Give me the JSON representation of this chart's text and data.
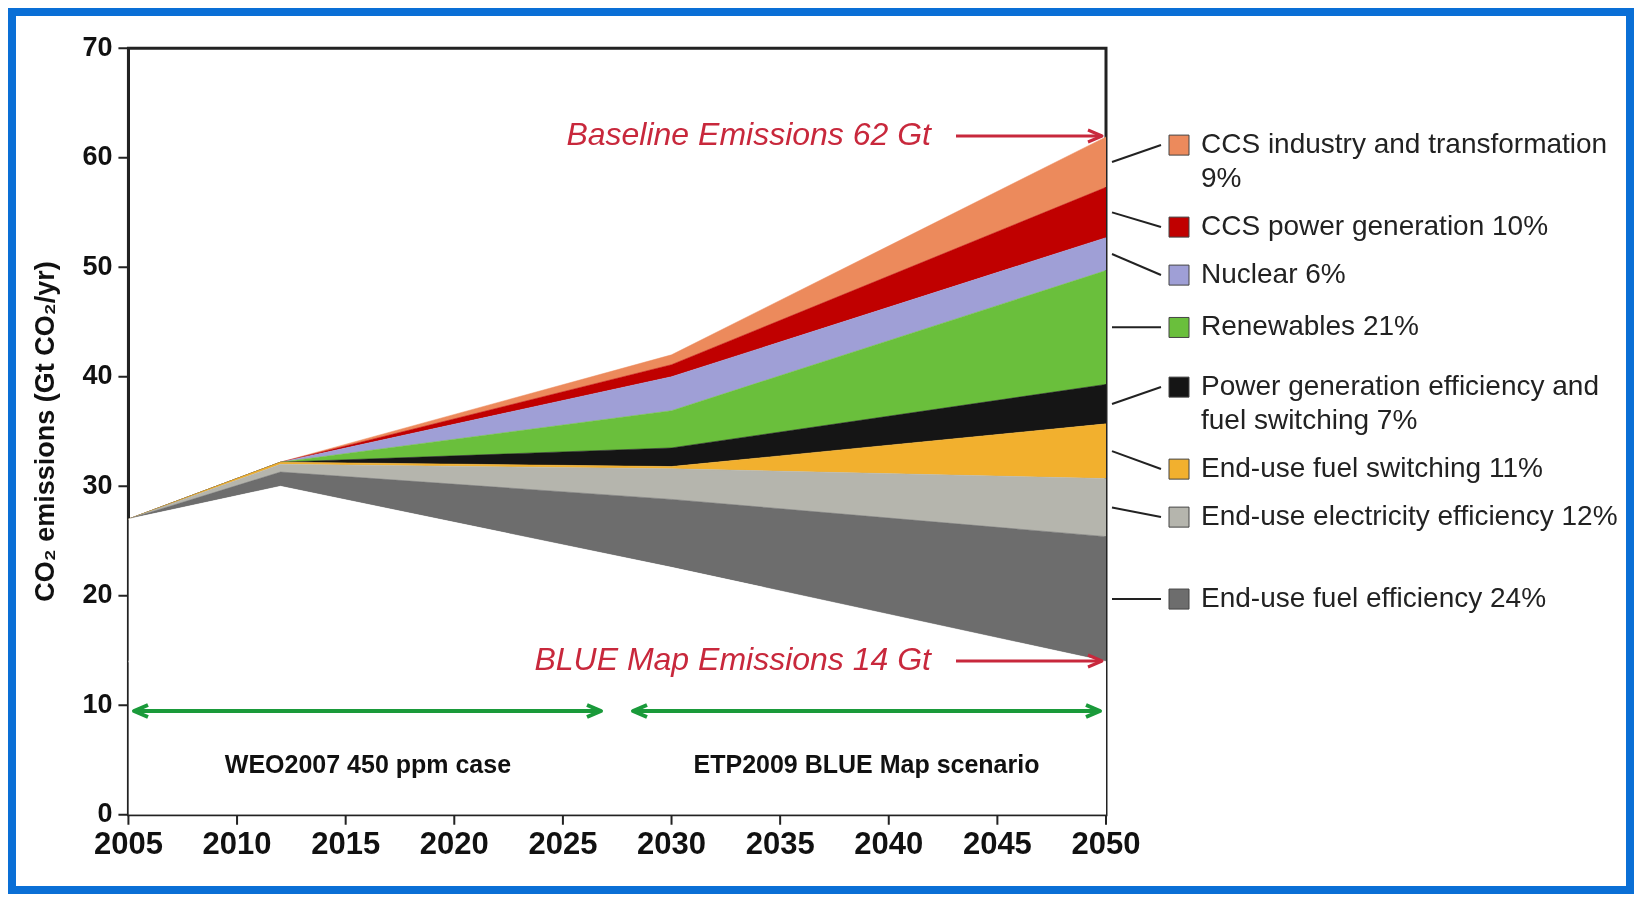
{
  "chart_data": {
    "type": "area",
    "stacked": true,
    "ylabel": "CO₂ emissions (Gt CO₂/yr)",
    "x": [
      2005,
      2012,
      2030,
      2050
    ],
    "series": [
      {
        "color": "#ffffff",
        "values": [
          27,
          30,
          22.6,
          14
        ]
      },
      {
        "name": "End-use fuel efficiency 24%",
        "color": "#6d6d6d",
        "values": [
          0,
          1.3,
          6.2,
          11.4
        ]
      },
      {
        "name": "End-use electricity efficiency 12%",
        "color": "#b5b5ad",
        "values": [
          0,
          0.7,
          2.8,
          5.3
        ]
      },
      {
        "name": "End-use fuel switching 11%",
        "color": "#f2b02e",
        "values": [
          0,
          0.2,
          0.2,
          5
        ]
      },
      {
        "name": "Power generation efficiency and fuel switching 7%",
        "color": "#151515",
        "values": [
          0,
          0,
          1.7,
          3.6
        ]
      },
      {
        "name": "Renewables 21%",
        "color": "#6abf3c",
        "values": [
          0,
          0,
          3.4,
          10.4
        ]
      },
      {
        "name": "Nuclear 6%",
        "color": "#9f9fd6",
        "values": [
          0,
          0,
          3.1,
          3
        ]
      },
      {
        "name": "CCS power generation 10%",
        "color": "#c00000",
        "values": [
          0,
          0,
          1.1,
          4.6
        ]
      },
      {
        "name": "CCS industry and transformation 9%",
        "color": "#ec8a5c",
        "values": [
          0,
          0,
          0.9,
          4.6
        ]
      }
    ],
    "xlim": [
      2005,
      2050
    ],
    "xticks": [
      2005,
      2010,
      2015,
      2020,
      2025,
      2030,
      2035,
      2040,
      2045,
      2050
    ],
    "ylim": [
      0,
      70
    ],
    "yticks": [
      0,
      10,
      20,
      30,
      40,
      50,
      60,
      70
    ],
    "ref_lines": [
      {
        "axis": "y",
        "value": 14,
        "color": "#cccccc"
      }
    ],
    "annotations": [
      {
        "text": "Baseline Emissions 62 Gt",
        "x": 2050,
        "y": 62
      },
      {
        "text": "BLUE Map Emissions 14 Gt",
        "x": 2050,
        "y": 14
      },
      "WEO2007 450 ppm case",
      "ETP2009 BLUE Map scenario"
    ],
    "grid": false,
    "legend": "right"
  }
}
